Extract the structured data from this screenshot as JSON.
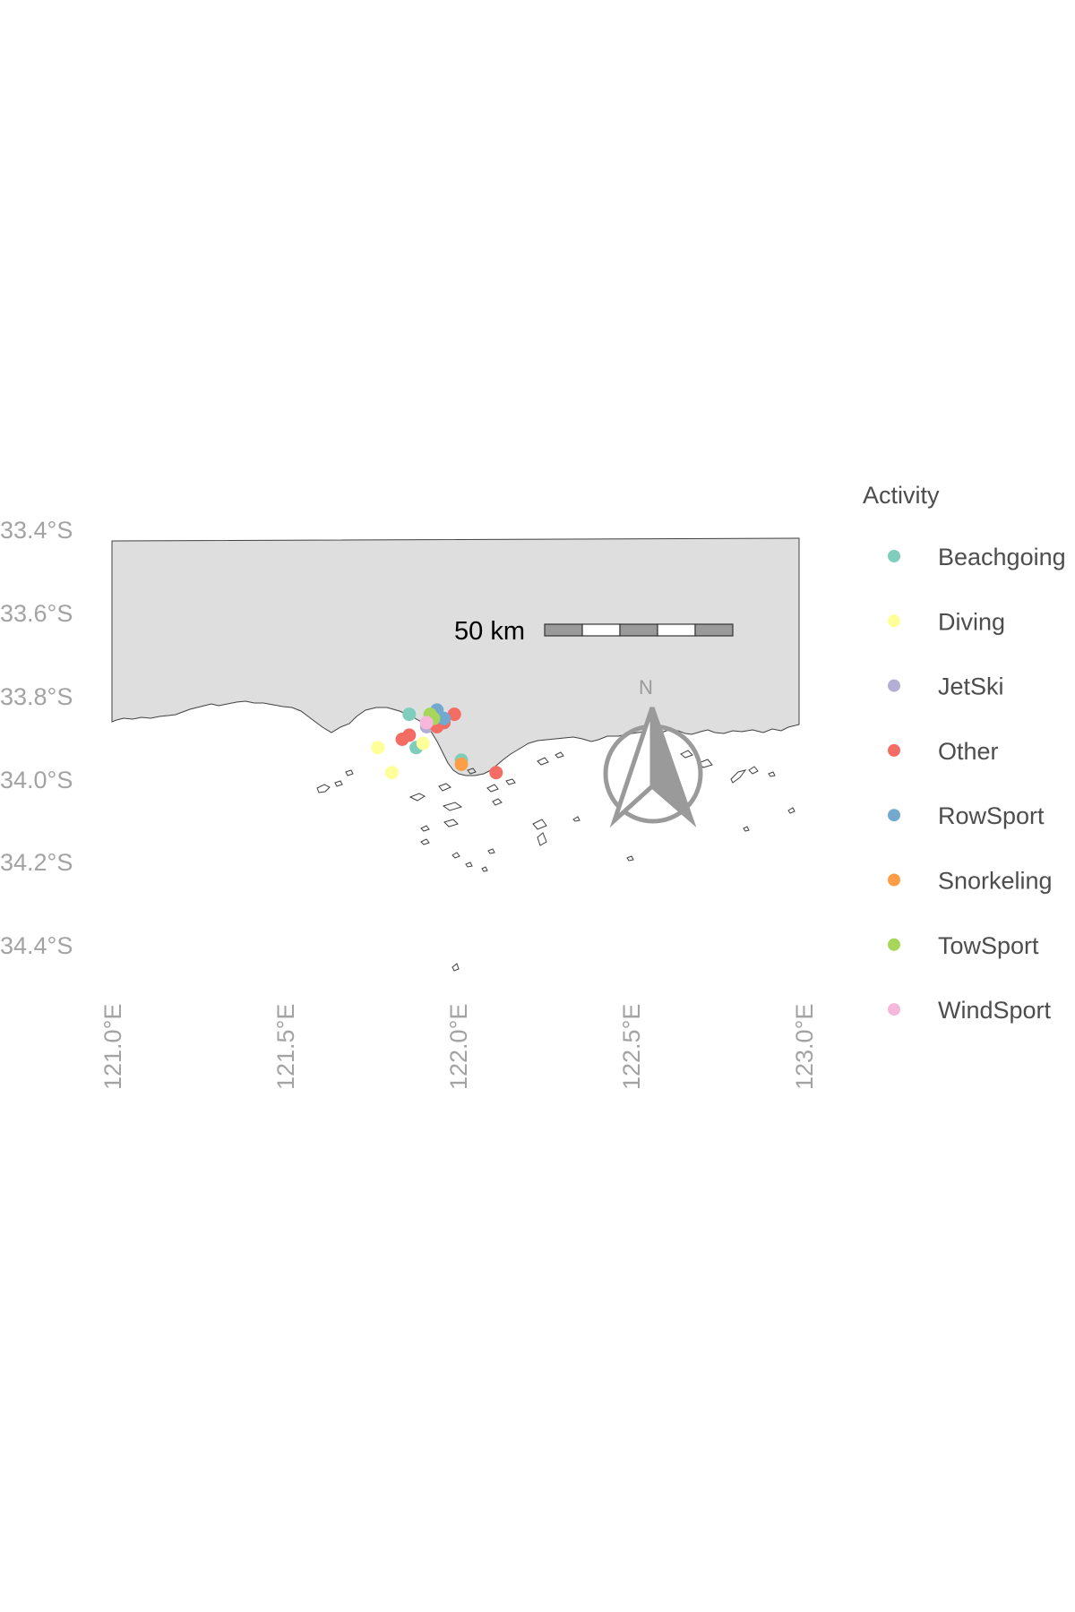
{
  "axes": {
    "y_ticks": [
      "33.4°S",
      "33.6°S",
      "33.8°S",
      "34.0°S",
      "34.2°S",
      "34.4°S"
    ],
    "x_ticks": [
      "121.0°E",
      "121.5°E",
      "122.0°E",
      "122.5°E",
      "123.0°E"
    ]
  },
  "legend": {
    "title": "Activity",
    "items": [
      {
        "label": "Beachgoing",
        "color": "#7fcdbb"
      },
      {
        "label": "Diving",
        "color": "#ffff99"
      },
      {
        "label": "JetSki",
        "color": "#b3aed4"
      },
      {
        "label": "Other",
        "color": "#f46d64"
      },
      {
        "label": "RowSport",
        "color": "#74a9cf"
      },
      {
        "label": "Snorkeling",
        "color": "#fd9e46"
      },
      {
        "label": "TowSport",
        "color": "#a6d75b"
      },
      {
        "label": "WindSport",
        "color": "#f5b8dc"
      }
    ]
  },
  "scale_bar": {
    "label": "50 km"
  },
  "north_arrow": {
    "label": "N"
  },
  "chart_data": {
    "type": "scatter",
    "xlim": [
      121.0,
      123.0
    ],
    "ylim": [
      -34.45,
      -33.4
    ],
    "land_color": "#dedede",
    "points": [
      {
        "lon": 121.85,
        "lat": -33.84,
        "activity": "Beachgoing"
      },
      {
        "lon": 121.87,
        "lat": -33.92,
        "activity": "Beachgoing"
      },
      {
        "lon": 122.0,
        "lat": -33.95,
        "activity": "Beachgoing"
      },
      {
        "lon": 121.76,
        "lat": -33.92,
        "activity": "Diving"
      },
      {
        "lon": 121.8,
        "lat": -33.98,
        "activity": "Diving"
      },
      {
        "lon": 121.89,
        "lat": -33.91,
        "activity": "Diving"
      },
      {
        "lon": 121.9,
        "lat": -33.87,
        "activity": "JetSki"
      },
      {
        "lon": 121.83,
        "lat": -33.9,
        "activity": "Other"
      },
      {
        "lon": 121.85,
        "lat": -33.89,
        "activity": "Other"
      },
      {
        "lon": 121.93,
        "lat": -33.87,
        "activity": "Other"
      },
      {
        "lon": 121.95,
        "lat": -33.86,
        "activity": "Other"
      },
      {
        "lon": 121.98,
        "lat": -33.84,
        "activity": "Other"
      },
      {
        "lon": 122.1,
        "lat": -33.98,
        "activity": "Other"
      },
      {
        "lon": 121.93,
        "lat": -33.83,
        "activity": "RowSport"
      },
      {
        "lon": 121.95,
        "lat": -33.85,
        "activity": "RowSport"
      },
      {
        "lon": 122.0,
        "lat": -33.96,
        "activity": "Snorkeling"
      },
      {
        "lon": 121.91,
        "lat": -33.84,
        "activity": "TowSport"
      },
      {
        "lon": 121.92,
        "lat": -33.85,
        "activity": "TowSport"
      },
      {
        "lon": 121.9,
        "lat": -33.86,
        "activity": "WindSport"
      }
    ]
  }
}
